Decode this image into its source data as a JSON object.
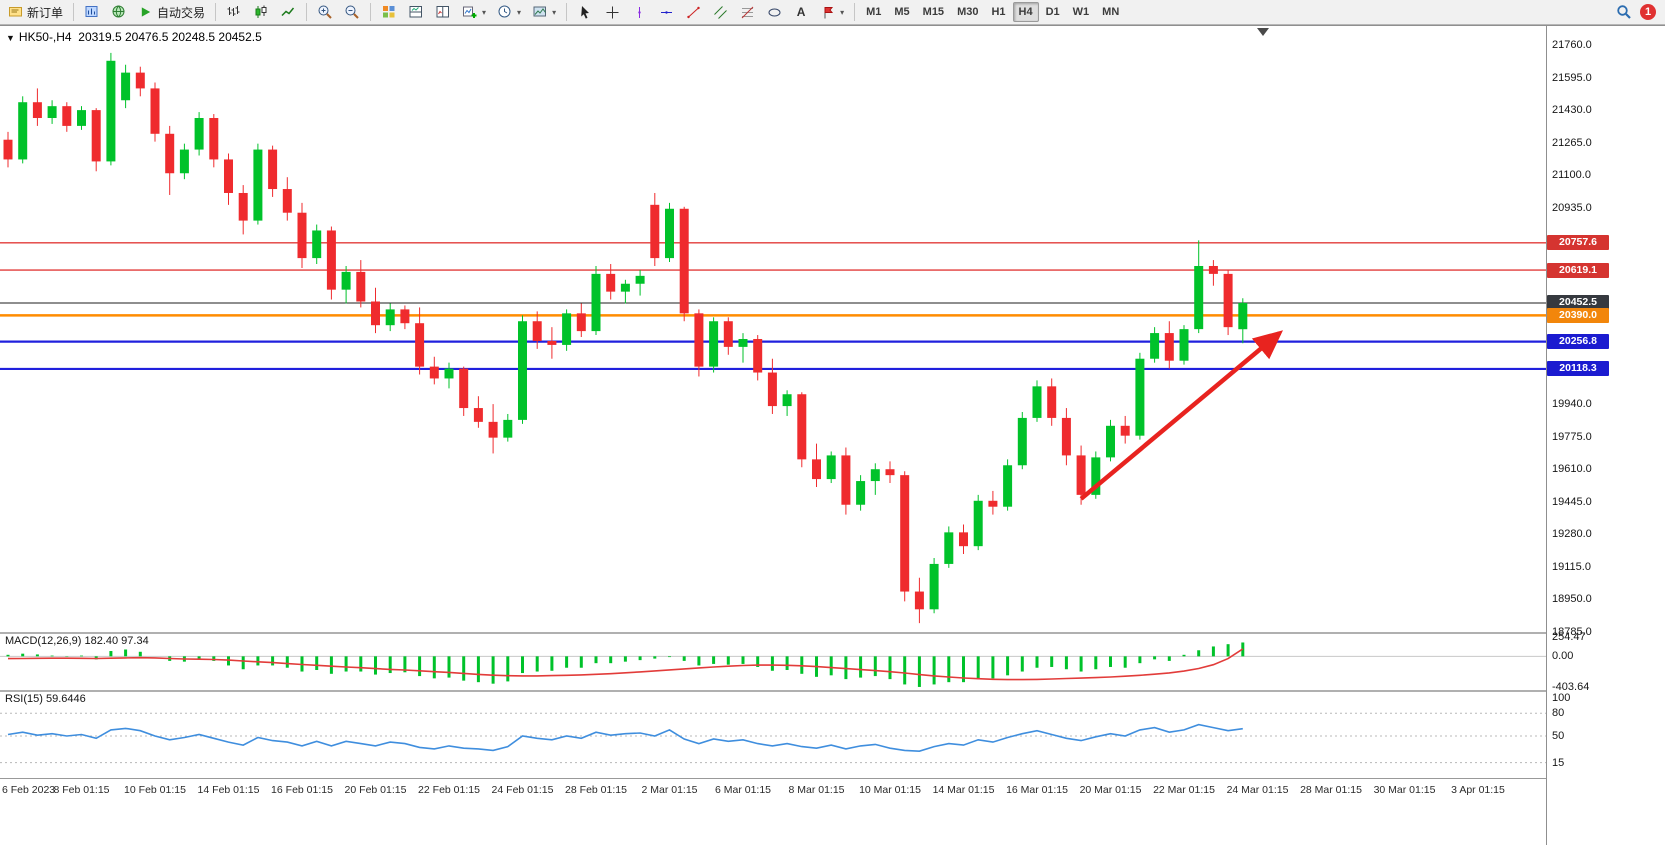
{
  "toolbar": {
    "new_order_label": "新订单",
    "auto_trading_label": "自动交易",
    "timeframe_labels": [
      "M1",
      "M5",
      "M15",
      "M30",
      "H1",
      "H4",
      "D1",
      "W1",
      "MN"
    ],
    "active_timeframe": "H4",
    "notification_count": "1",
    "text_tool_label": "A",
    "caret": "▾"
  },
  "chart": {
    "collapse_glyph": "▼",
    "symbol": "HK50-,H4",
    "ohlc_text": "20319.5 20476.5 20248.5 20452.5",
    "price_axis": {
      "max": 21760,
      "min": 18785,
      "labels": [
        21760.0,
        21595.0,
        21430.0,
        21265.0,
        21100.0,
        20935.0,
        19940.0,
        19775.0,
        19610.0,
        19445.0,
        19280.0,
        19115.0,
        18950.0,
        18785.0
      ]
    },
    "hlines": [
      {
        "price": 20757.6,
        "color": "#e23c3a",
        "badge": "#d53430",
        "width": 1.4
      },
      {
        "price": 20619.1,
        "color": "#e23c3a",
        "badge": "#d53430",
        "width": 1.4
      },
      {
        "price": 20452.5,
        "color": "#1c1c1c",
        "badge": "#36393f",
        "width": 1
      },
      {
        "price": 20390.0,
        "color": "#ff8c00",
        "badge": "#f2860b",
        "width": 2.5
      },
      {
        "price": 20256.8,
        "color": "#2020dd",
        "badge": "#1b1bd0",
        "width": 2.2
      },
      {
        "price": 20118.3,
        "color": "#2020dd",
        "badge": "#1b1bd0",
        "width": 2.2
      }
    ],
    "colors": {
      "up": "#00c22a",
      "down": "#ef2b2e"
    },
    "candles": [
      [
        21280,
        21320,
        21140,
        21180
      ],
      [
        21180,
        21500,
        21160,
        21470
      ],
      [
        21470,
        21540,
        21350,
        21390
      ],
      [
        21390,
        21480,
        21360,
        21450
      ],
      [
        21450,
        21470,
        21320,
        21350
      ],
      [
        21350,
        21450,
        21330,
        21430
      ],
      [
        21430,
        21440,
        21120,
        21170
      ],
      [
        21170,
        21720,
        21150,
        21680
      ],
      [
        21480,
        21660,
        21440,
        21620
      ],
      [
        21620,
        21650,
        21500,
        21540
      ],
      [
        21540,
        21570,
        21270,
        21310
      ],
      [
        21310,
        21350,
        21000,
        21110
      ],
      [
        21110,
        21260,
        21080,
        21230
      ],
      [
        21230,
        21420,
        21200,
        21390
      ],
      [
        21390,
        21410,
        21140,
        21180
      ],
      [
        21180,
        21210,
        20950,
        21010
      ],
      [
        21010,
        21050,
        20800,
        20870
      ],
      [
        20870,
        21260,
        20850,
        21230
      ],
      [
        21230,
        21250,
        20990,
        21030
      ],
      [
        21030,
        21090,
        20870,
        20910
      ],
      [
        20910,
        20960,
        20630,
        20680
      ],
      [
        20680,
        20850,
        20650,
        20820
      ],
      [
        20820,
        20840,
        20470,
        20520
      ],
      [
        20520,
        20640,
        20450,
        20610
      ],
      [
        20610,
        20670,
        20430,
        20460
      ],
      [
        20460,
        20530,
        20300,
        20340
      ],
      [
        20340,
        20450,
        20310,
        20420
      ],
      [
        20420,
        20440,
        20320,
        20350
      ],
      [
        20350,
        20430,
        20090,
        20130
      ],
      [
        20130,
        20180,
        20040,
        20070
      ],
      [
        20070,
        20150,
        20020,
        20120
      ],
      [
        20120,
        20130,
        19880,
        19920
      ],
      [
        19920,
        19980,
        19820,
        19850
      ],
      [
        19850,
        19940,
        19690,
        19770
      ],
      [
        19770,
        19890,
        19750,
        19860
      ],
      [
        19860,
        20390,
        19840,
        20360
      ],
      [
        20360,
        20410,
        20220,
        20260
      ],
      [
        20260,
        20330,
        20170,
        20240
      ],
      [
        20240,
        20420,
        20210,
        20400
      ],
      [
        20400,
        20450,
        20280,
        20310
      ],
      [
        20310,
        20640,
        20290,
        20600
      ],
      [
        20600,
        20650,
        20470,
        20510
      ],
      [
        20510,
        20570,
        20450,
        20550
      ],
      [
        20550,
        20620,
        20490,
        20590
      ],
      [
        20950,
        21010,
        20640,
        20680
      ],
      [
        20680,
        20960,
        20660,
        20930
      ],
      [
        20930,
        20940,
        20360,
        20400
      ],
      [
        20400,
        20420,
        20080,
        20130
      ],
      [
        20130,
        20380,
        20100,
        20360
      ],
      [
        20360,
        20380,
        20190,
        20230
      ],
      [
        20230,
        20300,
        20150,
        20270
      ],
      [
        20270,
        20290,
        20060,
        20100
      ],
      [
        20100,
        20170,
        19890,
        19930
      ],
      [
        19930,
        20010,
        19880,
        19990
      ],
      [
        19990,
        20000,
        19620,
        19660
      ],
      [
        19660,
        19740,
        19520,
        19560
      ],
      [
        19560,
        19700,
        19540,
        19680
      ],
      [
        19680,
        19720,
        19380,
        19430
      ],
      [
        19430,
        19580,
        19400,
        19550
      ],
      [
        19550,
        19640,
        19480,
        19610
      ],
      [
        19610,
        19650,
        19540,
        19580
      ],
      [
        19580,
        19600,
        18940,
        18990
      ],
      [
        18990,
        19060,
        18830,
        18900
      ],
      [
        18900,
        19160,
        18880,
        19130
      ],
      [
        19130,
        19320,
        19110,
        19290
      ],
      [
        19290,
        19330,
        19180,
        19220
      ],
      [
        19220,
        19480,
        19200,
        19450
      ],
      [
        19450,
        19500,
        19380,
        19420
      ],
      [
        19420,
        19660,
        19400,
        19630
      ],
      [
        19630,
        19900,
        19610,
        19870
      ],
      [
        19870,
        20060,
        19850,
        20030
      ],
      [
        20030,
        20070,
        19830,
        19870
      ],
      [
        19870,
        19920,
        19630,
        19680
      ],
      [
        19680,
        19730,
        19430,
        19480
      ],
      [
        19480,
        19700,
        19460,
        19670
      ],
      [
        19670,
        19860,
        19650,
        19830
      ],
      [
        19830,
        19880,
        19740,
        19780
      ],
      [
        19780,
        20200,
        19760,
        20170
      ],
      [
        20170,
        20330,
        20150,
        20300
      ],
      [
        20300,
        20360,
        20120,
        20160
      ],
      [
        20160,
        20340,
        20140,
        20320
      ],
      [
        20320,
        20770,
        20300,
        20640
      ],
      [
        20640,
        20670,
        20540,
        20600
      ],
      [
        20600,
        20620,
        20290,
        20330
      ],
      [
        20319.5,
        20476.5,
        20248.5,
        20452.5
      ]
    ],
    "arrow": {
      "from_index": 73,
      "from_price": 19460,
      "to_index": 86.5,
      "to_price": 20300,
      "color": "#e8231f"
    }
  },
  "macd": {
    "name": "MACD(12,26,9)",
    "values_text": "182.40 97.34",
    "axis": [
      254.47,
      0,
      -403.64
    ],
    "hist_color": "#00c22a",
    "signal_color": "#e23c3a",
    "hist": [
      20,
      35,
      25,
      10,
      -5,
      10,
      -40,
      70,
      90,
      60,
      0,
      -60,
      -70,
      -30,
      -60,
      -120,
      -170,
      -120,
      -120,
      -150,
      -200,
      -180,
      -230,
      -200,
      -200,
      -240,
      -220,
      -210,
      -260,
      -290,
      -280,
      -320,
      -340,
      -360,
      -330,
      -220,
      -200,
      -190,
      -150,
      -150,
      -90,
      -90,
      -70,
      -50,
      -30,
      -10,
      -60,
      -120,
      -100,
      -110,
      -100,
      -140,
      -190,
      -180,
      -230,
      -270,
      -250,
      -300,
      -280,
      -260,
      -300,
      -370,
      -403,
      -370,
      -340,
      -340,
      -300,
      -290,
      -250,
      -200,
      -150,
      -140,
      -170,
      -200,
      -170,
      -140,
      -150,
      -90,
      -40,
      -60,
      20,
      80,
      130,
      160,
      182.4
    ],
    "signal": [
      -30,
      -28,
      -26,
      -25,
      -25,
      -26,
      -28,
      -25,
      -20,
      -18,
      -20,
      -28,
      -35,
      -38,
      -42,
      -50,
      -62,
      -72,
      -82,
      -95,
      -108,
      -118,
      -130,
      -140,
      -150,
      -162,
      -172,
      -180,
      -190,
      -202,
      -212,
      -225,
      -238,
      -248,
      -255,
      -258,
      -257,
      -254,
      -250,
      -245,
      -237,
      -228,
      -217,
      -205,
      -192,
      -178,
      -165,
      -152,
      -140,
      -130,
      -120,
      -115,
      -115,
      -118,
      -125,
      -135,
      -148,
      -162,
      -175,
      -188,
      -202,
      -220,
      -240,
      -258,
      -272,
      -285,
      -295,
      -302,
      -306,
      -306,
      -303,
      -298,
      -292,
      -287,
      -280,
      -272,
      -262,
      -250,
      -235,
      -218,
      -195,
      -160,
      -110,
      -30,
      97.34
    ]
  },
  "rsi": {
    "name": "RSI(15)",
    "value_text": "59.6446",
    "axis": [
      100,
      80,
      50,
      15
    ],
    "levels": [
      80,
      50,
      15
    ],
    "line_color": "#3f8ede",
    "values": [
      52,
      55,
      51,
      53,
      50,
      52,
      47,
      58,
      60,
      57,
      50,
      45,
      48,
      52,
      47,
      42,
      38,
      48,
      44,
      42,
      37,
      43,
      37,
      43,
      40,
      37,
      42,
      40,
      35,
      33,
      37,
      34,
      33,
      31,
      36,
      50,
      47,
      45,
      50,
      47,
      55,
      51,
      53,
      54,
      50,
      58,
      46,
      40,
      46,
      43,
      45,
      40,
      37,
      40,
      36,
      34,
      38,
      33,
      37,
      39,
      34,
      31,
      30,
      36,
      40,
      38,
      45,
      42,
      48,
      53,
      57,
      52,
      47,
      44,
      49,
      53,
      50,
      58,
      61,
      55,
      58,
      65,
      61,
      57,
      59.6
    ]
  },
  "time_axis": [
    "6 Feb 2023",
    "8 Feb 01:15",
    "10 Feb 01:15",
    "14 Feb 01:15",
    "16 Feb 01:15",
    "20 Feb 01:15",
    "22 Feb 01:15",
    "24 Feb 01:15",
    "28 Feb 01:15",
    "2 Mar 01:15",
    "6 Mar 01:15",
    "8 Mar 01:15",
    "10 Mar 01:15",
    "14 Mar 01:15",
    "16 Mar 01:15",
    "20 Mar 01:15",
    "22 Mar 01:15",
    "24 Mar 01:15",
    "28 Mar 01:15",
    "30 Mar 01:15",
    "3 Apr 01:15"
  ]
}
